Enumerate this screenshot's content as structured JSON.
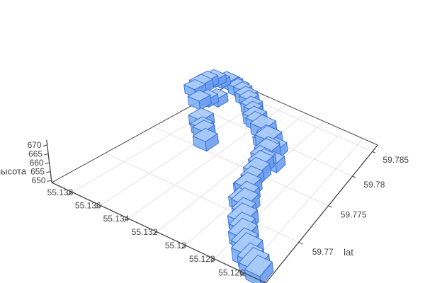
{
  "figure": {
    "background": "#ffffff"
  },
  "colors": {
    "cube_top": "#a9cbf8",
    "cube_front": "#7fb0f2",
    "cube_side": "#6b9fee",
    "cube_edge": "#3a6fd8",
    "grid": "#e2e2e2",
    "axis_line": "#444444",
    "tick_text": "#444444"
  },
  "chart_data": {
    "type": "scatter",
    "subtype": "3d-cube-track",
    "title": "",
    "grid": true,
    "legend": null,
    "axes": {
      "z": {
        "title": "высота",
        "ticks": [
          650,
          655,
          660,
          665,
          670
        ],
        "range": [
          648.8,
          672.8
        ]
      },
      "lon": {
        "title": "",
        "ticks": [
          55.138,
          55.136,
          55.134,
          55.132,
          55.13,
          55.128,
          55.126
        ],
        "range": [
          55.1395,
          55.1245
        ]
      },
      "lat": {
        "title": "lat",
        "ticks": [
          59.77,
          59.775,
          59.78,
          59.785
        ],
        "range": [
          59.7655,
          59.7865
        ]
      }
    },
    "points": [
      {
        "lat": 59.78,
        "lon": 55.13905,
        "alt": 663,
        "s": 1.0
      },
      {
        "lat": 59.78054,
        "lon": 55.13875,
        "alt": 666,
        "s": 1.1
      },
      {
        "lat": 59.78108,
        "lon": 55.13845,
        "alt": 669,
        "s": 1.0
      },
      {
        "lat": 59.78154,
        "lon": 55.13809,
        "alt": 671,
        "s": 1.15
      },
      {
        "lat": 59.78188,
        "lon": 55.13767,
        "alt": 669,
        "s": 0.9
      },
      {
        "lat": 59.78211,
        "lon": 55.13719,
        "alt": 671,
        "s": 1.2
      },
      {
        "lat": 59.7822,
        "lon": 55.13665,
        "alt": 670,
        "s": 1.0
      },
      {
        "lat": 59.78211,
        "lon": 55.13608,
        "alt": 668,
        "s": 1.1
      },
      {
        "lat": 59.78188,
        "lon": 55.13551,
        "alt": 669,
        "s": 0.95
      },
      {
        "lat": 59.78152,
        "lon": 55.13496,
        "alt": 667,
        "s": 1.15
      },
      {
        "lat": 59.78106,
        "lon": 55.13442,
        "alt": 668,
        "s": 1.0
      },
      {
        "lat": 59.78052,
        "lon": 55.13389,
        "alt": 666,
        "s": 1.1
      },
      {
        "lat": 59.77993,
        "lon": 55.13338,
        "alt": 667,
        "s": 0.92
      },
      {
        "lat": 59.7793,
        "lon": 55.13289,
        "alt": 665,
        "s": 1.18
      },
      {
        "lat": 59.77867,
        "lon": 55.13241,
        "alt": 666,
        "s": 1.0
      },
      {
        "lat": 59.7781,
        "lon": 55.1314,
        "alt": 667,
        "s": 1.25
      },
      {
        "lat": 59.77764,
        "lon": 55.13083,
        "alt": 665,
        "s": 1.0
      },
      {
        "lat": 59.77705,
        "lon": 55.13035,
        "alt": 666,
        "s": 1.28
      },
      {
        "lat": 59.77634,
        "lon": 55.12996,
        "alt": 664,
        "s": 1.0
      },
      {
        "lat": 59.77558,
        "lon": 55.12968,
        "alt": 665,
        "s": 1.18
      },
      {
        "lat": 59.7748,
        "lon": 55.12948,
        "alt": 663,
        "s": 0.95
      },
      {
        "lat": 59.77403,
        "lon": 55.12936,
        "alt": 664,
        "s": 1.1
      },
      {
        "lat": 59.77325,
        "lon": 55.12929,
        "alt": 662,
        "s": 1.15
      },
      {
        "lat": 59.77247,
        "lon": 55.12924,
        "alt": 661,
        "s": 0.95
      },
      {
        "lat": 59.77172,
        "lon": 55.12915,
        "alt": 659,
        "s": 1.1
      },
      {
        "lat": 59.771,
        "lon": 55.12882,
        "alt": 658,
        "s": 1.0
      },
      {
        "lat": 59.77029,
        "lon": 55.12855,
        "alt": 657,
        "s": 1.1
      },
      {
        "lat": 59.76962,
        "lon": 55.12828,
        "alt": 656,
        "s": 0.95
      },
      {
        "lat": 59.76897,
        "lon": 55.12798,
        "alt": 655,
        "s": 1.15
      },
      {
        "lat": 59.76836,
        "lon": 55.12765,
        "alt": 654.5,
        "s": 1.0
      },
      {
        "lat": 59.76781,
        "lon": 55.12728,
        "alt": 654,
        "s": 1.1
      },
      {
        "lat": 59.76731,
        "lon": 55.12687,
        "alt": 653,
        "s": 1.0
      },
      {
        "lat": 59.76687,
        "lon": 55.12645,
        "alt": 652.5,
        "s": 1.15
      },
      {
        "lat": 59.76647,
        "lon": 55.126,
        "alt": 652,
        "s": 0.95
      },
      {
        "lat": 59.76613,
        "lon": 55.12555,
        "alt": 651.5,
        "s": 1.1
      },
      {
        "lat": 59.76586,
        "lon": 55.1251,
        "alt": 651,
        "s": 1.0
      },
      {
        "lat": 59.77953,
        "lon": 55.13838,
        "alt": 658,
        "s": 1.05
      },
      {
        "lat": 59.77995,
        "lon": 55.13782,
        "alt": 660,
        "s": 0.95
      },
      {
        "lat": 59.78045,
        "lon": 55.13725,
        "alt": 661,
        "s": 1.0
      },
      {
        "lat": 59.77726,
        "lon": 55.1311,
        "alt": 662,
        "s": 0.9
      },
      {
        "lat": 59.77537,
        "lon": 55.1302,
        "alt": 661,
        "s": 0.9
      },
      {
        "lat": 59.7718,
        "lon": 55.1296,
        "alt": 657,
        "s": 0.85
      },
      {
        "lat": 59.77054,
        "lon": 55.12915,
        "alt": 655.5,
        "s": 0.9
      },
      {
        "lat": 59.77684,
        "lon": 55.1296,
        "alt": 663,
        "s": 1.0
      },
      {
        "lat": 59.77558,
        "lon": 55.12915,
        "alt": 659.5,
        "s": 0.95
      },
      {
        "lat": 59.77674,
        "lon": 55.13628,
        "alt": 660,
        "s": 1.1
      },
      {
        "lat": 59.77663,
        "lon": 55.1362,
        "alt": 655,
        "s": 1.0
      },
      {
        "lat": 59.776,
        "lon": 55.1356,
        "alt": 657,
        "s": 0.95
      },
      {
        "lat": 59.77527,
        "lon": 55.135,
        "alt": 655,
        "s": 1.05
      }
    ]
  }
}
